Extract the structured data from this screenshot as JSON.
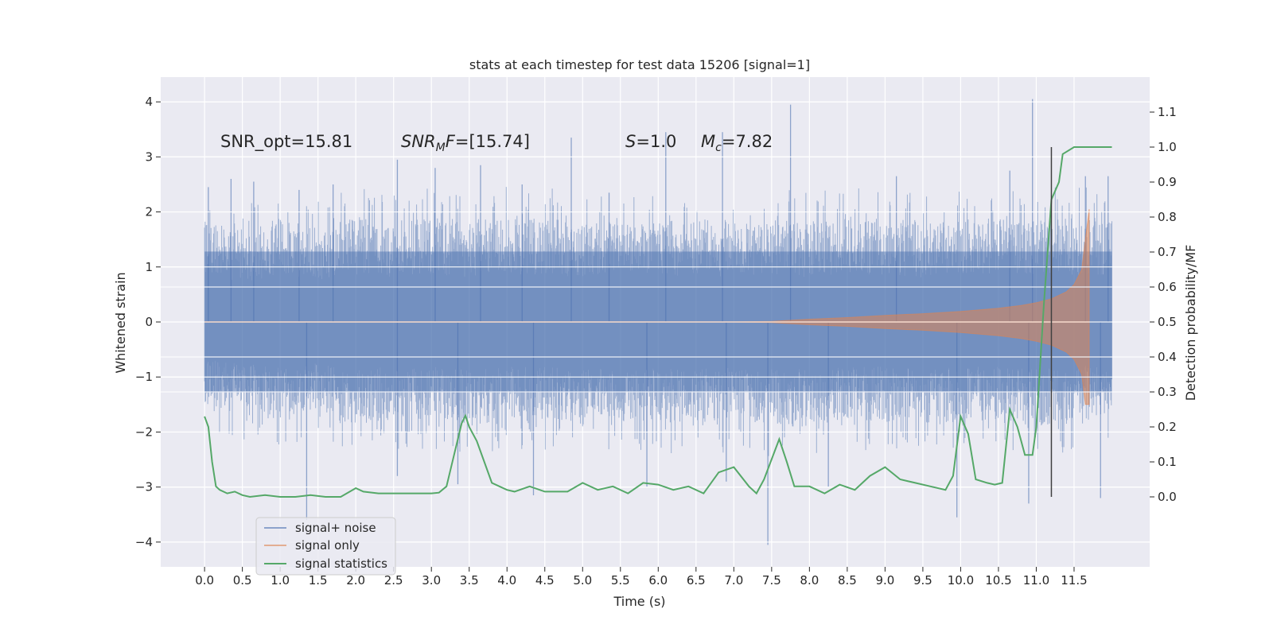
{
  "chart_data": {
    "type": "line",
    "title": "stats at each timestep for test data 15206 [signal=1]",
    "xlabel": "Time (s)",
    "ylabel_left": "Whitened strain",
    "ylabel_right": "Detection probability/MF",
    "xlim": [
      -0.58,
      12.5
    ],
    "ylim_left": [
      -4.45,
      4.45
    ],
    "ylim_right": [
      -0.2,
      1.2
    ],
    "x_ticks": [
      "0.0",
      "0.5",
      "1.0",
      "1.5",
      "2.0",
      "2.5",
      "3.0",
      "3.5",
      "4.0",
      "4.5",
      "5.0",
      "5.5",
      "6.0",
      "6.5",
      "7.0",
      "7.5",
      "8.0",
      "8.5",
      "9.0",
      "9.5",
      "10.0",
      "10.5",
      "11.0",
      "11.5"
    ],
    "y_ticks_left": [
      "4",
      "3",
      "2",
      "1",
      "0",
      "−1",
      "−2",
      "−3",
      "−4"
    ],
    "y_ticks_right": [
      "1.1",
      "1.0",
      "0.9",
      "0.8",
      "0.7",
      "0.6",
      "0.5",
      "0.4",
      "0.3",
      "0.2",
      "0.1",
      "0.0"
    ],
    "grid": true,
    "legend_placement": "lower-left",
    "colors": {
      "signal_noise": "#4c72b0",
      "signal_only": "#dd8452",
      "signal_statistics": "#55a868",
      "vline": "#404040",
      "background": "#eaeaf2"
    },
    "annotations": [
      {
        "label": "SNR_opt",
        "value": "15.81"
      },
      {
        "label": "SNR",
        "subscript": "M",
        "suffix": "F",
        "value": "[15.74]"
      },
      {
        "label": "S",
        "value": "1.0"
      },
      {
        "label": "M",
        "subscript": "c",
        "value": "7.82"
      }
    ],
    "vline_x": 11.2,
    "series": [
      {
        "name": "signal+ noise",
        "x_range": [
          0.0,
          12.0
        ],
        "envelope_upper": [
          1.9,
          1.6,
          1.9,
          1.7,
          1.9,
          1.8,
          1.9,
          1.8,
          1.9,
          1.9,
          1.8,
          1.9,
          1.8,
          1.9,
          1.8,
          1.9,
          1.8,
          1.9,
          1.9,
          1.8,
          1.9,
          1.9,
          1.9,
          1.9,
          1.9
        ],
        "envelope_lower": [
          -1.5,
          -1.7,
          -1.8,
          -1.6,
          -1.9,
          -1.8,
          -1.8,
          -1.9,
          -1.8,
          -1.8,
          -1.9,
          -1.8,
          -1.8,
          -1.9,
          -1.8,
          -1.9,
          -1.9,
          -1.8,
          -1.8,
          -1.9,
          -1.8,
          -1.8,
          -1.9,
          -1.8,
          -1.7
        ],
        "spikes": [
          [
            0.05,
            2.45
          ],
          [
            0.35,
            2.6
          ],
          [
            0.65,
            2.55
          ],
          [
            1.25,
            2.4
          ],
          [
            1.7,
            2.5
          ],
          [
            2.55,
            2.95
          ],
          [
            3.05,
            2.8
          ],
          [
            3.65,
            2.85
          ],
          [
            4.2,
            2.5
          ],
          [
            4.85,
            3.35
          ],
          [
            5.35,
            2.35
          ],
          [
            6.1,
            3.45
          ],
          [
            6.85,
            3.45
          ],
          [
            7.75,
            3.95
          ],
          [
            9.15,
            2.65
          ],
          [
            10.65,
            2.75
          ],
          [
            10.95,
            4.05
          ],
          [
            11.65,
            2.65
          ],
          [
            11.95,
            2.65
          ],
          [
            1.35,
            -3.6
          ],
          [
            2.55,
            -2.8
          ],
          [
            4.35,
            -3.15
          ],
          [
            5.85,
            -3.0
          ],
          [
            7.45,
            -4.05
          ],
          [
            8.25,
            -3.0
          ],
          [
            9.95,
            -3.55
          ],
          [
            10.9,
            -3.3
          ],
          [
            11.85,
            -3.2
          ],
          [
            6.9,
            -2.9
          ],
          [
            3.35,
            -2.95
          ]
        ]
      },
      {
        "name": "signal only",
        "x": [
          0.0,
          1.0,
          2.0,
          3.0,
          4.0,
          5.0,
          6.0,
          7.0,
          7.5,
          8.0,
          8.5,
          9.0,
          9.5,
          10.0,
          10.5,
          10.8,
          11.0,
          11.2,
          11.4,
          11.5,
          11.6,
          11.65,
          11.7
        ],
        "amplitude": [
          0.0,
          0.0,
          0.0,
          0.0,
          0.0,
          0.0,
          0.0,
          0.0,
          0.01,
          0.05,
          0.08,
          0.12,
          0.15,
          0.19,
          0.25,
          0.3,
          0.35,
          0.42,
          0.55,
          0.68,
          0.95,
          1.5,
          2.05
        ]
      },
      {
        "name": "signal statistics",
        "x": [
          0.0,
          0.05,
          0.1,
          0.15,
          0.2,
          0.3,
          0.4,
          0.5,
          0.6,
          0.8,
          1.0,
          1.2,
          1.4,
          1.6,
          1.8,
          2.0,
          2.1,
          2.3,
          2.6,
          3.0,
          3.1,
          3.2,
          3.3,
          3.4,
          3.45,
          3.5,
          3.6,
          3.7,
          3.8,
          4.0,
          4.1,
          4.3,
          4.5,
          4.8,
          5.0,
          5.2,
          5.4,
          5.6,
          5.8,
          6.0,
          6.2,
          6.4,
          6.6,
          6.8,
          7.0,
          7.2,
          7.3,
          7.4,
          7.6,
          7.7,
          7.8,
          8.0,
          8.2,
          8.4,
          8.6,
          8.8,
          9.0,
          9.2,
          9.4,
          9.6,
          9.8,
          9.9,
          10.0,
          10.1,
          10.2,
          10.35,
          10.45,
          10.55,
          10.65,
          10.75,
          10.85,
          10.95,
          11.0,
          11.1,
          11.2,
          11.3,
          11.35,
          11.5,
          12.0
        ],
        "values": [
          0.23,
          0.2,
          0.1,
          0.03,
          0.02,
          0.01,
          0.015,
          0.005,
          0.0,
          0.005,
          0.0,
          0.0,
          0.005,
          0.0,
          0.0,
          0.025,
          0.015,
          0.01,
          0.01,
          0.01,
          0.012,
          0.03,
          0.12,
          0.21,
          0.232,
          0.2,
          0.16,
          0.1,
          0.04,
          0.02,
          0.015,
          0.03,
          0.015,
          0.015,
          0.04,
          0.02,
          0.03,
          0.01,
          0.04,
          0.035,
          0.02,
          0.03,
          0.01,
          0.07,
          0.085,
          0.03,
          0.01,
          0.05,
          0.165,
          0.1,
          0.03,
          0.03,
          0.01,
          0.035,
          0.02,
          0.06,
          0.085,
          0.05,
          0.04,
          0.03,
          0.02,
          0.06,
          0.23,
          0.18,
          0.05,
          0.04,
          0.035,
          0.04,
          0.25,
          0.2,
          0.12,
          0.12,
          0.2,
          0.55,
          0.85,
          0.9,
          0.98,
          1.0,
          1.0
        ]
      }
    ]
  }
}
